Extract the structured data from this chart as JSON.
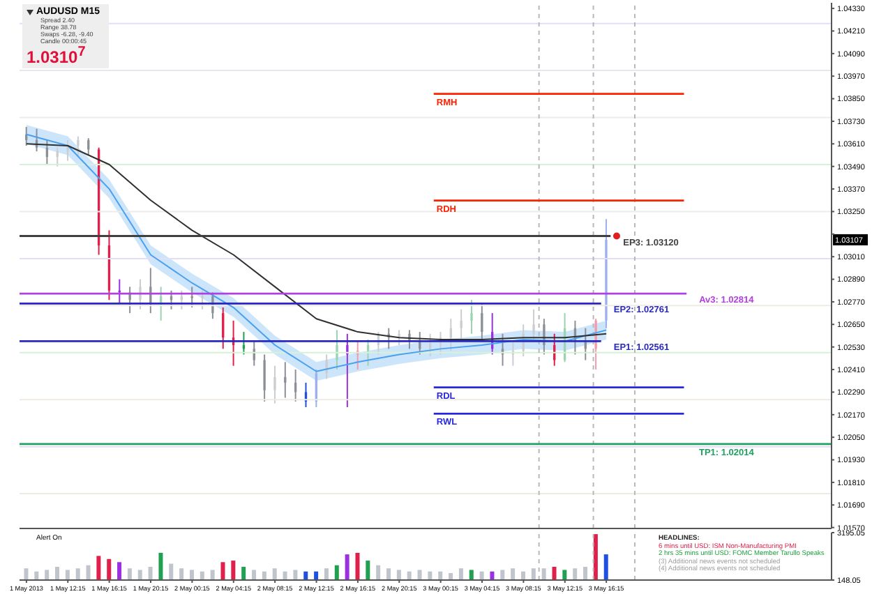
{
  "chart_data": [
    {
      "type": "candlestick",
      "title": "AUDUSD M15",
      "x": [
        "2013-05-01T08:15",
        "2013-05-01T09:15",
        "2013-05-01T10:15",
        "2013-05-01T11:15",
        "2013-05-01T12:15",
        "2013-05-01T13:15",
        "2013-05-01T14:15",
        "2013-05-01T15:15",
        "2013-05-01T16:15",
        "2013-05-01T17:15",
        "2013-05-01T18:15",
        "2013-05-01T19:15",
        "2013-05-01T20:15",
        "2013-05-01T21:15",
        "2013-05-01T22:15",
        "2013-05-01T23:15",
        "2013-05-02T00:15",
        "2013-05-02T01:15",
        "2013-05-02T02:15",
        "2013-05-02T03:15",
        "2013-05-02T04:15",
        "2013-05-02T05:15",
        "2013-05-02T06:15",
        "2013-05-02T07:15",
        "2013-05-02T08:15",
        "2013-05-02T09:15",
        "2013-05-02T10:15",
        "2013-05-02T11:15",
        "2013-05-02T12:15",
        "2013-05-02T13:15",
        "2013-05-02T14:15",
        "2013-05-02T15:15",
        "2013-05-02T16:15",
        "2013-05-02T17:15",
        "2013-05-02T18:15",
        "2013-05-02T19:15",
        "2013-05-02T20:15",
        "2013-05-02T21:15",
        "2013-05-02T22:15",
        "2013-05-02T23:15",
        "2013-05-03T00:15",
        "2013-05-03T01:15",
        "2013-05-03T02:15",
        "2013-05-03T03:15",
        "2013-05-03T04:15",
        "2013-05-03T05:15",
        "2013-05-03T06:15",
        "2013-05-03T07:15",
        "2013-05-03T08:15",
        "2013-05-03T09:15",
        "2013-05-03T10:15",
        "2013-05-03T11:15",
        "2013-05-03T12:15",
        "2013-05-03T13:15",
        "2013-05-03T14:15",
        "2013-05-03T15:15",
        "2013-05-03T16:15"
      ],
      "ohlc": [
        [
          1.0366,
          1.037,
          1.036,
          1.0363
        ],
        [
          1.0363,
          1.0369,
          1.0357,
          1.0359
        ],
        [
          1.0359,
          1.0363,
          1.035,
          1.0354
        ],
        [
          1.0354,
          1.0359,
          1.0349,
          1.0357
        ],
        [
          1.0357,
          1.0363,
          1.0352,
          1.036
        ],
        [
          1.036,
          1.0365,
          1.0354,
          1.0363
        ],
        [
          1.0363,
          1.0364,
          1.0355,
          1.0358
        ],
        [
          1.0358,
          1.0359,
          1.0302,
          1.0307
        ],
        [
          1.0307,
          1.0315,
          1.0278,
          1.0283
        ],
        [
          1.0283,
          1.0289,
          1.0276,
          1.0282
        ],
        [
          1.0282,
          1.0285,
          1.0271,
          1.0278
        ],
        [
          1.0278,
          1.0289,
          1.0273,
          1.0285
        ],
        [
          1.0285,
          1.0295,
          1.0271,
          1.0276
        ],
        [
          1.0276,
          1.0285,
          1.0267,
          1.028
        ],
        [
          1.028,
          1.0283,
          1.0273,
          1.0278
        ],
        [
          1.0278,
          1.0283,
          1.0273,
          1.028
        ],
        [
          1.028,
          1.0285,
          1.0274,
          1.0279
        ],
        [
          1.0279,
          1.0283,
          1.0273,
          1.028
        ],
        [
          1.028,
          1.0282,
          1.0268,
          1.0271
        ],
        [
          1.0271,
          1.0274,
          1.0252,
          1.0258
        ],
        [
          1.0258,
          1.0267,
          1.0243,
          1.0254
        ],
        [
          1.0254,
          1.0261,
          1.0249,
          1.0252
        ],
        [
          1.0252,
          1.0256,
          1.0243,
          1.0246
        ],
        [
          1.0246,
          1.0249,
          1.0224,
          1.023
        ],
        [
          1.023,
          1.0243,
          1.0223,
          1.0237
        ],
        [
          1.0237,
          1.0245,
          1.0226,
          1.0234
        ],
        [
          1.0234,
          1.0241,
          1.0224,
          1.0229
        ],
        [
          1.0229,
          1.0234,
          1.0221,
          1.0224
        ],
        [
          1.0224,
          1.0241,
          1.0221,
          1.0239
        ],
        [
          1.0239,
          1.0249,
          1.0236,
          1.0246
        ],
        [
          1.0246,
          1.0262,
          1.0241,
          1.0254
        ],
        [
          1.0254,
          1.026,
          1.0221,
          1.0249
        ],
        [
          1.0249,
          1.0256,
          1.0241,
          1.0251
        ],
        [
          1.0251,
          1.0257,
          1.0243,
          1.0254
        ],
        [
          1.0254,
          1.0261,
          1.0249,
          1.026
        ],
        [
          1.026,
          1.0263,
          1.0252,
          1.0258
        ],
        [
          1.0258,
          1.0262,
          1.0254,
          1.026
        ],
        [
          1.026,
          1.0262,
          1.0252,
          1.0256
        ],
        [
          1.0256,
          1.0261,
          1.0249,
          1.0252
        ],
        [
          1.0252,
          1.026,
          1.0248,
          1.0255
        ],
        [
          1.0255,
          1.0261,
          1.0249,
          1.0258
        ],
        [
          1.0258,
          1.0268,
          1.0251,
          1.0263
        ],
        [
          1.0263,
          1.0273,
          1.0256,
          1.0267
        ],
        [
          1.0267,
          1.0278,
          1.026,
          1.0271
        ],
        [
          1.0271,
          1.0276,
          1.0256,
          1.0261
        ],
        [
          1.0261,
          1.0271,
          1.0249,
          1.0252
        ],
        [
          1.0252,
          1.026,
          1.0243,
          1.0249
        ],
        [
          1.0249,
          1.0256,
          1.0243,
          1.0251
        ],
        [
          1.0251,
          1.0265,
          1.0248,
          1.026
        ],
        [
          1.026,
          1.0273,
          1.0256,
          1.0265
        ],
        [
          1.0265,
          1.0268,
          1.0249,
          1.0254
        ],
        [
          1.0254,
          1.026,
          1.0243,
          1.0246
        ],
        [
          1.0246,
          1.0271,
          1.0245,
          1.0263
        ],
        [
          1.0263,
          1.0267,
          1.0249,
          1.0256
        ],
        [
          1.0256,
          1.0263,
          1.0246,
          1.0252
        ],
        [
          1.0252,
          1.0268,
          1.0241,
          1.0267
        ],
        [
          1.0267,
          1.0321,
          1.0263,
          1.031
        ]
      ],
      "colors": [
        "#8c9096",
        "#8c9096",
        "#8c9096",
        "#cbcdd0",
        "#cbcdd0",
        "#cbcdd0",
        "#8c9096",
        "#e0204a",
        "#e0204a",
        "#9b30e0",
        "#8c9096",
        "#cbcdd0",
        "#8c9096",
        "#9bd4b0",
        "#8c9096",
        "#cbcdd0",
        "#8c9096",
        "#cbcdd0",
        "#8c9096",
        "#e0204a",
        "#e0204a",
        "#20a050",
        "#8c9096",
        "#8c9096",
        "#cbcdd0",
        "#8c9096",
        "#8c9096",
        "#2050e0",
        "#9bb0f1",
        "#cbcdd0",
        "#9bd4b0",
        "#9b30e0",
        "#f19bae",
        "#9bd4b0",
        "#cbcdd0",
        "#8c9096",
        "#cbcdd0",
        "#8c9096",
        "#8c9096",
        "#cbcdd0",
        "#cbcdd0",
        "#cbcdd0",
        "#cbcdd0",
        "#9bd4b0",
        "#8c9096",
        "#9b30e0",
        "#8c9096",
        "#cbcdd0",
        "#cbcdd0",
        "#cbcdd0",
        "#8c9096",
        "#e0204a",
        "#9bd4b0",
        "#8c9096",
        "#8c9096",
        "#f19bae",
        "#9bb0f1"
      ],
      "series": [
        {
          "type": "line",
          "color": "#4aa0f0",
          "x": [
            "2013-05-01T08:15",
            "2013-05-01T12:15",
            "2013-05-01T16:15",
            "2013-05-01T20:15",
            "2013-05-02T00:15",
            "2013-05-02T04:15",
            "2013-05-02T08:15",
            "2013-05-02T12:15",
            "2013-05-02T16:15",
            "2013-05-02T20:15",
            "2013-05-03T00:15",
            "2013-05-03T04:15",
            "2013-05-03T08:15",
            "2013-05-03T12:15",
            "2013-05-03T16:15"
          ],
          "values": [
            1.0366,
            1.036,
            1.0337,
            1.0302,
            1.0287,
            1.0274,
            1.0254,
            1.024,
            1.0245,
            1.0249,
            1.0252,
            1.0254,
            1.0257,
            1.0256,
            1.0262
          ],
          "lower": [
            1.0361,
            1.0355,
            1.0332,
            1.0297,
            1.0282,
            1.0269,
            1.0249,
            1.0235,
            1.024,
            1.0244,
            1.0247,
            1.0249,
            1.0252,
            1.0251,
            1.0257
          ],
          "upper": [
            1.0371,
            1.0365,
            1.0342,
            1.0307,
            1.0292,
            1.0279,
            1.0259,
            1.0245,
            1.025,
            1.0254,
            1.0257,
            1.0259,
            1.0262,
            1.0261,
            1.0267
          ]
        },
        {
          "type": "line",
          "color": "#303030",
          "x": [
            "2013-05-01T08:15",
            "2013-05-01T12:15",
            "2013-05-01T16:15",
            "2013-05-01T20:15",
            "2013-05-02T00:15",
            "2013-05-02T04:15",
            "2013-05-02T08:15",
            "2013-05-02T12:15",
            "2013-05-02T16:15",
            "2013-05-02T20:15",
            "2013-05-03T00:15",
            "2013-05-03T04:15",
            "2013-05-03T08:15",
            "2013-05-03T12:15",
            "2013-05-03T16:15"
          ],
          "values": [
            1.0361,
            1.036,
            1.035,
            1.0331,
            1.0315,
            1.0302,
            1.0285,
            1.0268,
            1.0261,
            1.0258,
            1.0257,
            1.0257,
            1.0258,
            1.0258,
            1.026
          ]
        },
        {
          "type": "line",
          "name": "RMH",
          "color": "#ff2000",
          "x": [
            "2013-05-02T23:35",
            "2013-05-03T23:45"
          ],
          "values": [
            1.03876,
            1.03876
          ]
        },
        {
          "type": "line",
          "name": "RDH",
          "color": "#ff2000",
          "x": [
            "2013-05-02T23:35",
            "2013-05-03T23:45"
          ],
          "values": [
            1.03309,
            1.03309
          ]
        },
        {
          "type": "line",
          "name": "EP3: 1.03120",
          "color": "#404040",
          "x": [
            "2013-05-01T07:35",
            "2013-05-03T16:40"
          ],
          "values": [
            1.0312,
            1.0312
          ]
        },
        {
          "type": "line",
          "name": "Av3: 1.02814",
          "color": "#b040e0",
          "x": [
            "2013-05-01T07:35",
            "2013-05-04T00:00"
          ],
          "values": [
            1.02814,
            1.02814
          ]
        },
        {
          "type": "line",
          "name": "EP2: 1.02761",
          "color": "#2828c0",
          "x": [
            "2013-05-01T07:35",
            "2013-05-03T15:45"
          ],
          "values": [
            1.02761,
            1.02761
          ]
        },
        {
          "type": "line",
          "name": "EP1: 1.02561",
          "color": "#2828c0",
          "x": [
            "2013-05-01T07:35",
            "2013-05-03T15:45"
          ],
          "values": [
            1.02561,
            1.02561
          ]
        },
        {
          "type": "line",
          "name": "RDL",
          "color": "#2828e0",
          "x": [
            "2013-05-02T23:35",
            "2013-05-03T23:45"
          ],
          "values": [
            1.02315,
            1.02315
          ]
        },
        {
          "type": "line",
          "name": "RWL",
          "color": "#2828e0",
          "x": [
            "2013-05-02T23:35",
            "2013-05-03T23:45"
          ],
          "values": [
            1.02175,
            1.02175
          ]
        },
        {
          "type": "line",
          "name": "TP1: 1.02014",
          "color": "#20a060",
          "x": [
            "2013-05-01T07:35",
            "2013-05-04T14:00"
          ],
          "values": [
            1.02014,
            1.02014
          ]
        },
        {
          "type": "scatter",
          "color": "#e02020",
          "x": [
            "2013-05-03T17:15"
          ],
          "values": [
            1.0312
          ]
        }
      ],
      "xlim": [
        "2013-05-01T07:35",
        "2013-05-04T14:00"
      ],
      "ylim": [
        1.01565,
        1.0436
      ],
      "yticks": [
        {
          "value": 1.0157,
          "label": "1.01570"
        },
        {
          "value": 1.0169,
          "label": "1.01690"
        },
        {
          "value": 1.0181,
          "label": "1.01810"
        },
        {
          "value": 1.0193,
          "label": "1.01930"
        },
        {
          "value": 1.0205,
          "label": "1.02050"
        },
        {
          "value": 1.0217,
          "label": "1.02170"
        },
        {
          "value": 1.0229,
          "label": "1.02290"
        },
        {
          "value": 1.0241,
          "label": "1.02410"
        },
        {
          "value": 1.0253,
          "label": "1.02530"
        },
        {
          "value": 1.0265,
          "label": "1.02650"
        },
        {
          "value": 1.0277,
          "label": "1.02770"
        },
        {
          "value": 1.0289,
          "label": "1.02890"
        },
        {
          "value": 1.0301,
          "label": "1.03010"
        },
        {
          "value": 1.0313,
          "label": null
        },
        {
          "value": 1.0325,
          "label": "1.03250"
        },
        {
          "value": 1.0337,
          "label": "1.03370"
        },
        {
          "value": 1.0349,
          "label": "1.03490"
        },
        {
          "value": 1.0361,
          "label": "1.03610"
        },
        {
          "value": 1.0373,
          "label": "1.03730"
        },
        {
          "value": 1.0385,
          "label": "1.03850"
        },
        {
          "value": 1.0397,
          "label": "1.03970"
        },
        {
          "value": 1.0409,
          "label": "1.04090"
        },
        {
          "value": 1.0421,
          "label": "1.04210"
        },
        {
          "value": 1.0433,
          "label": "1.04330"
        }
      ],
      "tick_labels": "y",
      "ref_lines": [
        {
          "axis": "y",
          "value": 1.0425,
          "color": "#e2def6"
        },
        {
          "axis": "y",
          "value": 1.04,
          "color": "#e6e6ee"
        },
        {
          "axis": "y",
          "value": 1.0375,
          "color": "#ececec"
        },
        {
          "axis": "y",
          "value": 1.035,
          "color": "#d6f2d6"
        },
        {
          "axis": "y",
          "value": 1.0325,
          "color": "#ececec"
        },
        {
          "axis": "y",
          "value": 1.03,
          "color": "#e2def6"
        },
        {
          "axis": "y",
          "value": 1.0275,
          "color": "#efebe3"
        },
        {
          "axis": "y",
          "value": 1.025,
          "color": "#d6f2d6"
        },
        {
          "axis": "y",
          "value": 1.0225,
          "color": "#efebe3"
        },
        {
          "axis": "y",
          "value": 1.02,
          "color": "#e2def6"
        },
        {
          "axis": "y",
          "value": 1.0175,
          "color": "#efebe3"
        },
        {
          "axis": "x",
          "value": "2013-05-03T09:45",
          "color": "#b8b8b8",
          "line_style": "dashed"
        },
        {
          "axis": "x",
          "value": "2013-05-03T15:00",
          "color": "#b8b8b8",
          "line_style": "dashed"
        },
        {
          "axis": "x",
          "value": "2013-05-03T19:00",
          "color": "#b8b8b8",
          "line_style": "dashed"
        }
      ],
      "annotations": [
        "Spread 2.40",
        "Range 38.78",
        "Swaps -6.28, -9.40",
        "Candle 00:00:45",
        "1.0310$^{7}$",
        "1.03107"
      ]
    },
    {
      "type": "bar",
      "title": "Alert On",
      "x": [
        "2013-05-01T08:15",
        "2013-05-01T09:15",
        "2013-05-01T10:15",
        "2013-05-01T11:15",
        "2013-05-01T12:15",
        "2013-05-01T13:15",
        "2013-05-01T14:15",
        "2013-05-01T15:15",
        "2013-05-01T16:15",
        "2013-05-01T17:15",
        "2013-05-01T18:15",
        "2013-05-01T19:15",
        "2013-05-01T20:15",
        "2013-05-01T21:15",
        "2013-05-01T22:15",
        "2013-05-01T23:15",
        "2013-05-02T00:15",
        "2013-05-02T01:15",
        "2013-05-02T02:15",
        "2013-05-02T03:15",
        "2013-05-02T04:15",
        "2013-05-02T05:15",
        "2013-05-02T06:15",
        "2013-05-02T07:15",
        "2013-05-02T08:15",
        "2013-05-02T09:15",
        "2013-05-02T10:15",
        "2013-05-02T11:15",
        "2013-05-02T12:15",
        "2013-05-02T13:15",
        "2013-05-02T14:15",
        "2013-05-02T15:15",
        "2013-05-02T16:15",
        "2013-05-02T17:15",
        "2013-05-02T18:15",
        "2013-05-02T19:15",
        "2013-05-02T20:15",
        "2013-05-02T21:15",
        "2013-05-02T22:15",
        "2013-05-02T23:15",
        "2013-05-03T00:15",
        "2013-05-03T01:15",
        "2013-05-03T02:15",
        "2013-05-03T03:15",
        "2013-05-03T04:15",
        "2013-05-03T05:15",
        "2013-05-03T06:15",
        "2013-05-03T07:15",
        "2013-05-03T08:15",
        "2013-05-03T09:15",
        "2013-05-03T10:15",
        "2013-05-03T11:15",
        "2013-05-03T12:15",
        "2013-05-03T13:15",
        "2013-05-03T14:15",
        "2013-05-03T15:15",
        "2013-05-03T16:15"
      ],
      "values": [
        900,
        700,
        800,
        1000,
        800,
        900,
        1100,
        1700,
        1500,
        1300,
        900,
        800,
        1000,
        1900,
        1200,
        900,
        800,
        700,
        800,
        1300,
        1400,
        1000,
        800,
        700,
        900,
        700,
        800,
        700,
        700,
        900,
        1100,
        1800,
        1900,
        1400,
        1100,
        900,
        800,
        700,
        800,
        700,
        700,
        600,
        900,
        800,
        700,
        700,
        800,
        900,
        700,
        900,
        900,
        1000,
        800,
        900,
        1000,
        3100,
        1800
      ],
      "colors": [
        "#c0c4cc",
        "#c0c4cc",
        "#c0c4cc",
        "#c0c4cc",
        "#c0c4cc",
        "#c0c4cc",
        "#c0c4cc",
        "#e0204a",
        "#e0204a",
        "#9b30e0",
        "#c0c4cc",
        "#c0c4cc",
        "#c0c4cc",
        "#20a050",
        "#c0c4cc",
        "#c0c4cc",
        "#c0c4cc",
        "#c0c4cc",
        "#c0c4cc",
        "#e0204a",
        "#e0204a",
        "#20a050",
        "#c0c4cc",
        "#c0c4cc",
        "#c0c4cc",
        "#c0c4cc",
        "#c0c4cc",
        "#2050e0",
        "#2050e0",
        "#c0c4cc",
        "#20a050",
        "#9b30e0",
        "#e0204a",
        "#20a050",
        "#c0c4cc",
        "#c0c4cc",
        "#c0c4cc",
        "#c0c4cc",
        "#c0c4cc",
        "#c0c4cc",
        "#c0c4cc",
        "#c0c4cc",
        "#c0c4cc",
        "#20a050",
        "#c0c4cc",
        "#9b30e0",
        "#c0c4cc",
        "#c0c4cc",
        "#c0c4cc",
        "#c0c4cc",
        "#c0c4cc",
        "#e0204a",
        "#20a050",
        "#c0c4cc",
        "#c0c4cc",
        "#e0204a",
        "#2050e0"
      ],
      "xlim": [
        "2013-05-01T07:35",
        "2013-05-04T14:00"
      ],
      "xticks": [
        {
          "value": "2013-05-01T08:15",
          "label": "1 May 2013"
        },
        {
          "value": "2013-05-01T12:15",
          "label": "1 May 12:15"
        },
        {
          "value": "2013-05-01T16:15",
          "label": "1 May 16:15"
        },
        {
          "value": "2013-05-01T20:15",
          "label": "1 May 20:15"
        },
        {
          "value": "2013-05-02T00:15",
          "label": "2 May 00:15"
        },
        {
          "value": "2013-05-02T04:15",
          "label": "2 May 04:15"
        },
        {
          "value": "2013-05-02T08:15",
          "label": "2 May 08:15"
        },
        {
          "value": "2013-05-02T12:15",
          "label": "2 May 12:15"
        },
        {
          "value": "2013-05-02T16:15",
          "label": "2 May 16:15"
        },
        {
          "value": "2013-05-02T20:15",
          "label": "2 May 20:15"
        },
        {
          "value": "2013-05-03T00:15",
          "label": "3 May 00:15"
        },
        {
          "value": "2013-05-03T04:15",
          "label": "3 May 04:15"
        },
        {
          "value": "2013-05-03T08:15",
          "label": "3 May 08:15"
        },
        {
          "value": "2013-05-03T12:15",
          "label": "3 May 12:15"
        },
        {
          "value": "2013-05-03T16:15",
          "label": "3 May 16:15"
        }
      ],
      "ylim": [
        148.05,
        3195.05
      ],
      "yticks": [
        148.05,
        3195.05
      ],
      "ref_lines": [
        {
          "axis": "x",
          "value": "2013-05-03T09:45",
          "color": "#b8b8b8",
          "line_style": "dashed"
        },
        {
          "axis": "x",
          "value": "2013-05-03T15:00",
          "color": "#b8b8b8",
          "line_style": "dashed"
        },
        {
          "axis": "x",
          "value": "2013-05-03T19:00",
          "color": "#b8b8b8",
          "line_style": "dashed"
        }
      ],
      "annotations": [
        "HEADLINES:",
        "6 mins until USD: ISM Non-Manufacturing PMI",
        "2 hrs 35 mins until USD: FOMC Member Tarullo Speaks",
        "(3) Additional news events not scheduled",
        "(4) Additional news events not scheduled"
      ]
    }
  ]
}
